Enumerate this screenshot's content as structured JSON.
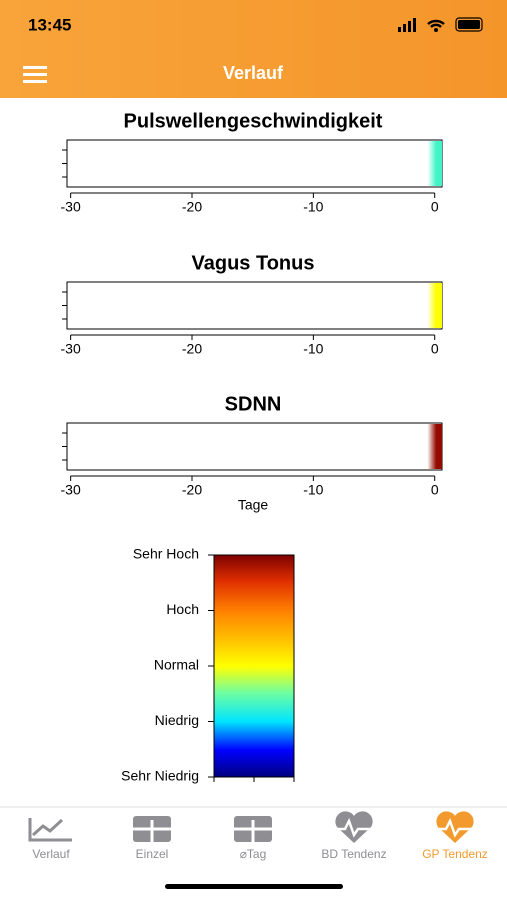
{
  "status_bar": {
    "time": "13:45"
  },
  "nav": {
    "title": "Verlauf"
  },
  "charts": [
    {
      "type": "heatstrip",
      "title": "Pulswellengeschwindigkeit",
      "x": [
        0
      ],
      "values": [
        -0.7
      ],
      "xlim": [
        -30.3,
        0.6
      ],
      "xticks": [
        -30,
        -20,
        -10,
        0
      ]
    },
    {
      "type": "heatstrip",
      "title": "Vagus Tonus",
      "x": [
        0
      ],
      "values": [
        0
      ],
      "xlim": [
        -30.3,
        0.6
      ],
      "xticks": [
        -30,
        -20,
        -10,
        0
      ]
    },
    {
      "type": "heatstrip",
      "title": "SDNN",
      "x": [
        0
      ],
      "values": [
        1.9
      ],
      "xlim": [
        -30.3,
        0.6
      ],
      "xticks": [
        -30,
        -20,
        -10,
        0
      ],
      "xlabel": "Tage"
    }
  ],
  "colorbar": {
    "lim": [
      -2,
      2
    ],
    "ticks": [
      {
        "value": 2,
        "label": "Sehr Hoch"
      },
      {
        "value": 1,
        "label": "Hoch"
      },
      {
        "value": 0,
        "label": "Normal"
      },
      {
        "value": -1,
        "label": "Niedrig"
      },
      {
        "value": -2,
        "label": "Sehr Niedrig"
      }
    ]
  },
  "tabs": [
    {
      "label": "Verlauf"
    },
    {
      "label": "Einzel"
    },
    {
      "label": "⌀Tag"
    },
    {
      "label": "BD Tendenz"
    },
    {
      "label": "GP Tendenz"
    }
  ]
}
